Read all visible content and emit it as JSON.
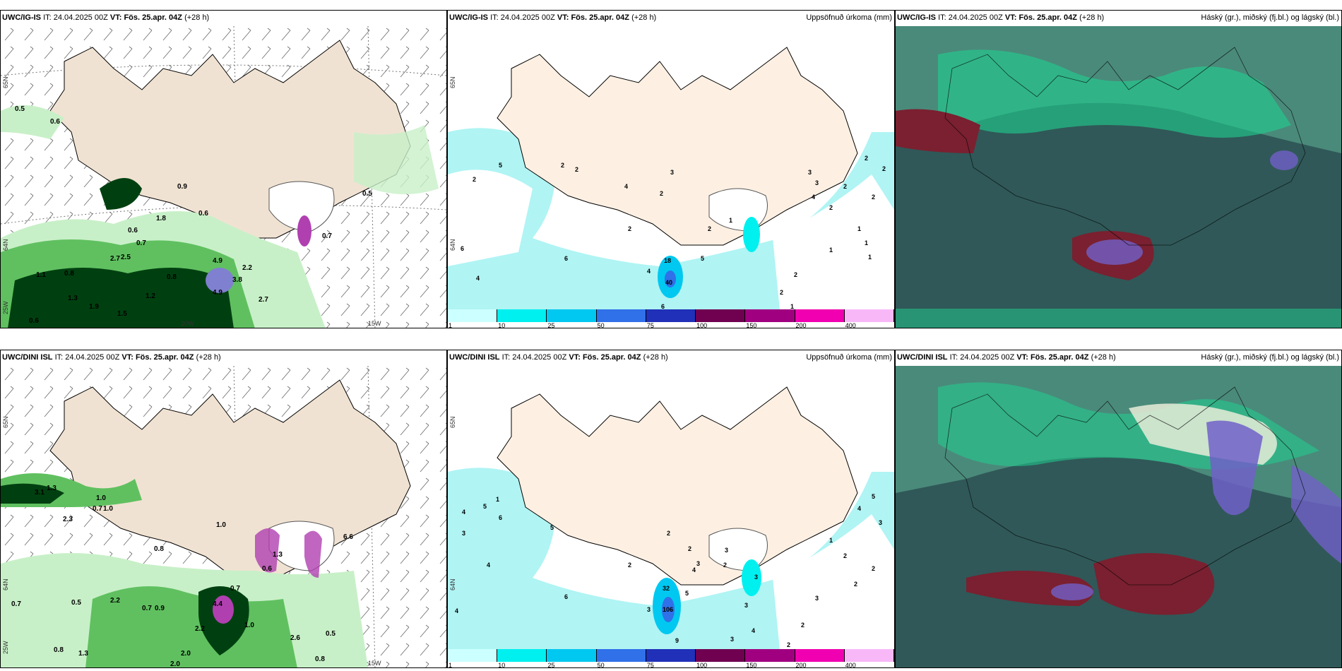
{
  "panels": [
    {
      "id": "p1",
      "model": "UWC/IG-IS",
      "it_label": "IT:",
      "it_value": "24.04.2025 00Z",
      "vt_label": "VT:",
      "vt_value": "Fös. 25.apr. 04Z",
      "lead": "(+28 h)",
      "right_label": "",
      "coords": {
        "lat1": "65N",
        "lat2": "64N",
        "lon_left": "25W",
        "lon_mid": "20W",
        "lon_right": "15W"
      },
      "labels": [
        "0.5",
        "0.6",
        "0.9",
        "0.6",
        "0.6",
        "0.7",
        "2.7",
        "2.5",
        "0.8",
        "1.1",
        "1.9",
        "1.3",
        "0.8",
        "0.6",
        "4.9",
        "4.9",
        "3.8",
        "2.2",
        "2.7",
        "0.5",
        "0.7",
        "1.2",
        "1.8",
        "1.5"
      ]
    },
    {
      "id": "p2",
      "model": "UWC/IG-IS",
      "it_label": "IT:",
      "it_value": "24.04.2025 00Z",
      "vt_label": "VT:",
      "vt_value": "Fös. 25.apr. 04Z",
      "lead": "(+28 h)",
      "right_label": "Uppsöfnuð úrkoma (mm)",
      "coords": {
        "lat1": "65N",
        "lat2": "64N"
      },
      "labels": [
        "2",
        "5",
        "2",
        "2",
        "4",
        "3",
        "2",
        "6",
        "4",
        "2",
        "6",
        "4",
        "18",
        "40",
        "6",
        "5",
        "1",
        "2",
        "3",
        "3",
        "4",
        "2",
        "1",
        "2",
        "2",
        "1",
        "1",
        "2",
        "2",
        "1",
        "2",
        "2",
        "1"
      ]
    },
    {
      "id": "p3",
      "model": "UWC/IG-IS",
      "it_label": "IT:",
      "it_value": "24.04.2025 00Z",
      "vt_label": "VT:",
      "vt_value": "Fös. 25.apr. 04Z",
      "lead": "(+28 h)",
      "right_label": "Háský (gr.), miðský (fj.bl.) og lágský (bl.)"
    },
    {
      "id": "p4",
      "model": "UWC/DINI ISL",
      "it_label": "IT:",
      "it_value": "24.04.2025 00Z",
      "vt_label": "VT:",
      "vt_value": "Fös. 25.apr. 04Z",
      "lead": "(+28 h)",
      "right_label": "",
      "coords": {
        "lat1": "65N",
        "lat2": "64N",
        "lon_left": "25W",
        "lon_mid": "20W",
        "lon_right": "15W"
      },
      "labels": [
        "3.1",
        "1.3",
        "1.0",
        "0.7",
        "1.0",
        "0.8",
        "1.3",
        "0.6",
        "2.3",
        "1.0",
        "6.6",
        "0.7",
        "0.5",
        "2.2",
        "0.7",
        "0.9",
        "0.7",
        "4.4",
        "2.2",
        "1.0",
        "2.6",
        "2.0",
        "0.5",
        "0.8",
        "2.0",
        "0.8",
        "1.3"
      ]
    },
    {
      "id": "p5",
      "model": "UWC/DINI ISL",
      "it_label": "IT:",
      "it_value": "24.04.2025 00Z",
      "vt_label": "VT:",
      "vt_value": "Fös. 25.apr. 04Z",
      "lead": "(+28 h)",
      "right_label": "Uppsöfnuð úrkoma (mm)",
      "coords": {
        "lat1": "65N",
        "lat2": "64N"
      },
      "labels": [
        "1",
        "5",
        "4",
        "6",
        "3",
        "4",
        "5",
        "4",
        "6",
        "2",
        "2",
        "3",
        "32",
        "106",
        "9",
        "5",
        "3",
        "4",
        "3",
        "2",
        "2",
        "3",
        "3",
        "4",
        "3",
        "2",
        "1",
        "2",
        "2",
        "3",
        "2",
        "2",
        "4",
        "5",
        "3"
      ]
    },
    {
      "id": "p6",
      "model": "UWC/DINI ISL",
      "it_label": "IT:",
      "it_value": "24.04.2025 00Z",
      "vt_label": "VT:",
      "vt_value": "Fös. 25.apr. 04Z",
      "lead": "(+28 h)",
      "right_label": "Háský (gr.), miðský (fj.bl.) og lágský (bl.)"
    }
  ],
  "colorbar": {
    "ticks": [
      "1",
      "10",
      "25",
      "50",
      "75",
      "100",
      "150",
      "200",
      "400"
    ],
    "colors": [
      "#ccffff",
      "#00f0f0",
      "#00c8f0",
      "#3070e8",
      "#2030b8",
      "#700050",
      "#a00080",
      "#f000b0",
      "#f8b8f8"
    ]
  },
  "colors": {
    "land": "#f0e2d2",
    "land2": "#fdf0e3",
    "precip_light": "#c8f0c8",
    "precip_mid": "#60c060",
    "precip_dark": "#004010",
    "rain_light": "#b0f4f4",
    "cloud_dark": "#305858",
    "cloud_mid": "#4a8a7a",
    "cloud_high": "#20d090",
    "cloud_red": "#7a2030",
    "cloud_blue": "#7060c8"
  }
}
